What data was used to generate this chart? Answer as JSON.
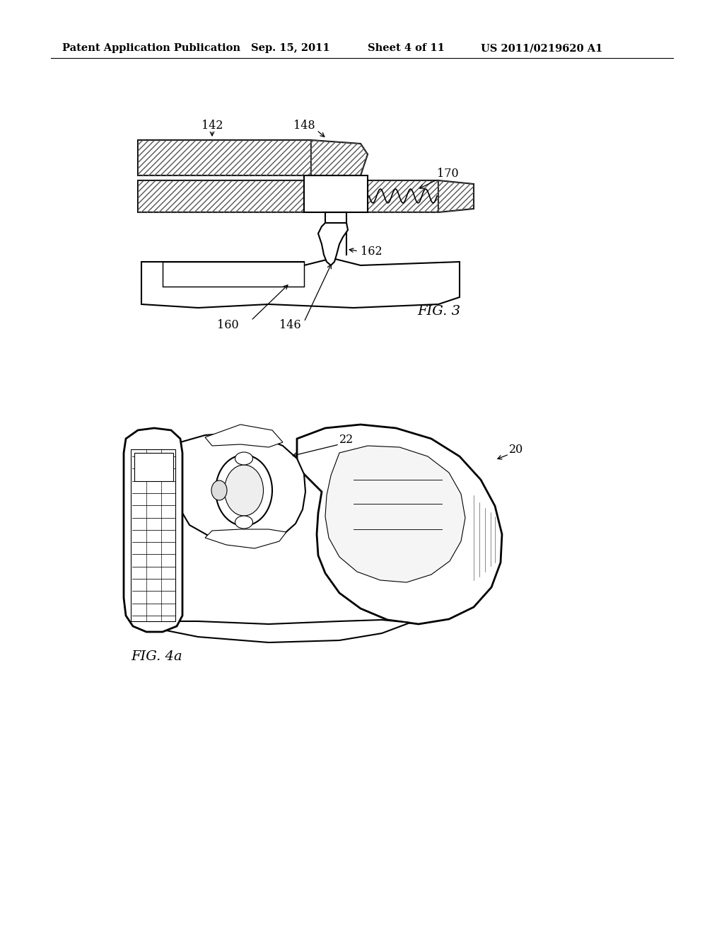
{
  "background_color": "#ffffff",
  "header_text": "Patent Application Publication",
  "header_date": "Sep. 15, 2011",
  "header_sheet": "Sheet 4 of 11",
  "header_patent": "US 2011/0219620 A1",
  "fig3_label": "FIG. 3",
  "fig4a_label": "FIG. 4a",
  "line_color": "#000000",
  "text_color": "#000000",
  "header_fontsize": 10.5,
  "label_fontsize": 11,
  "fig_label_fontsize": 13
}
